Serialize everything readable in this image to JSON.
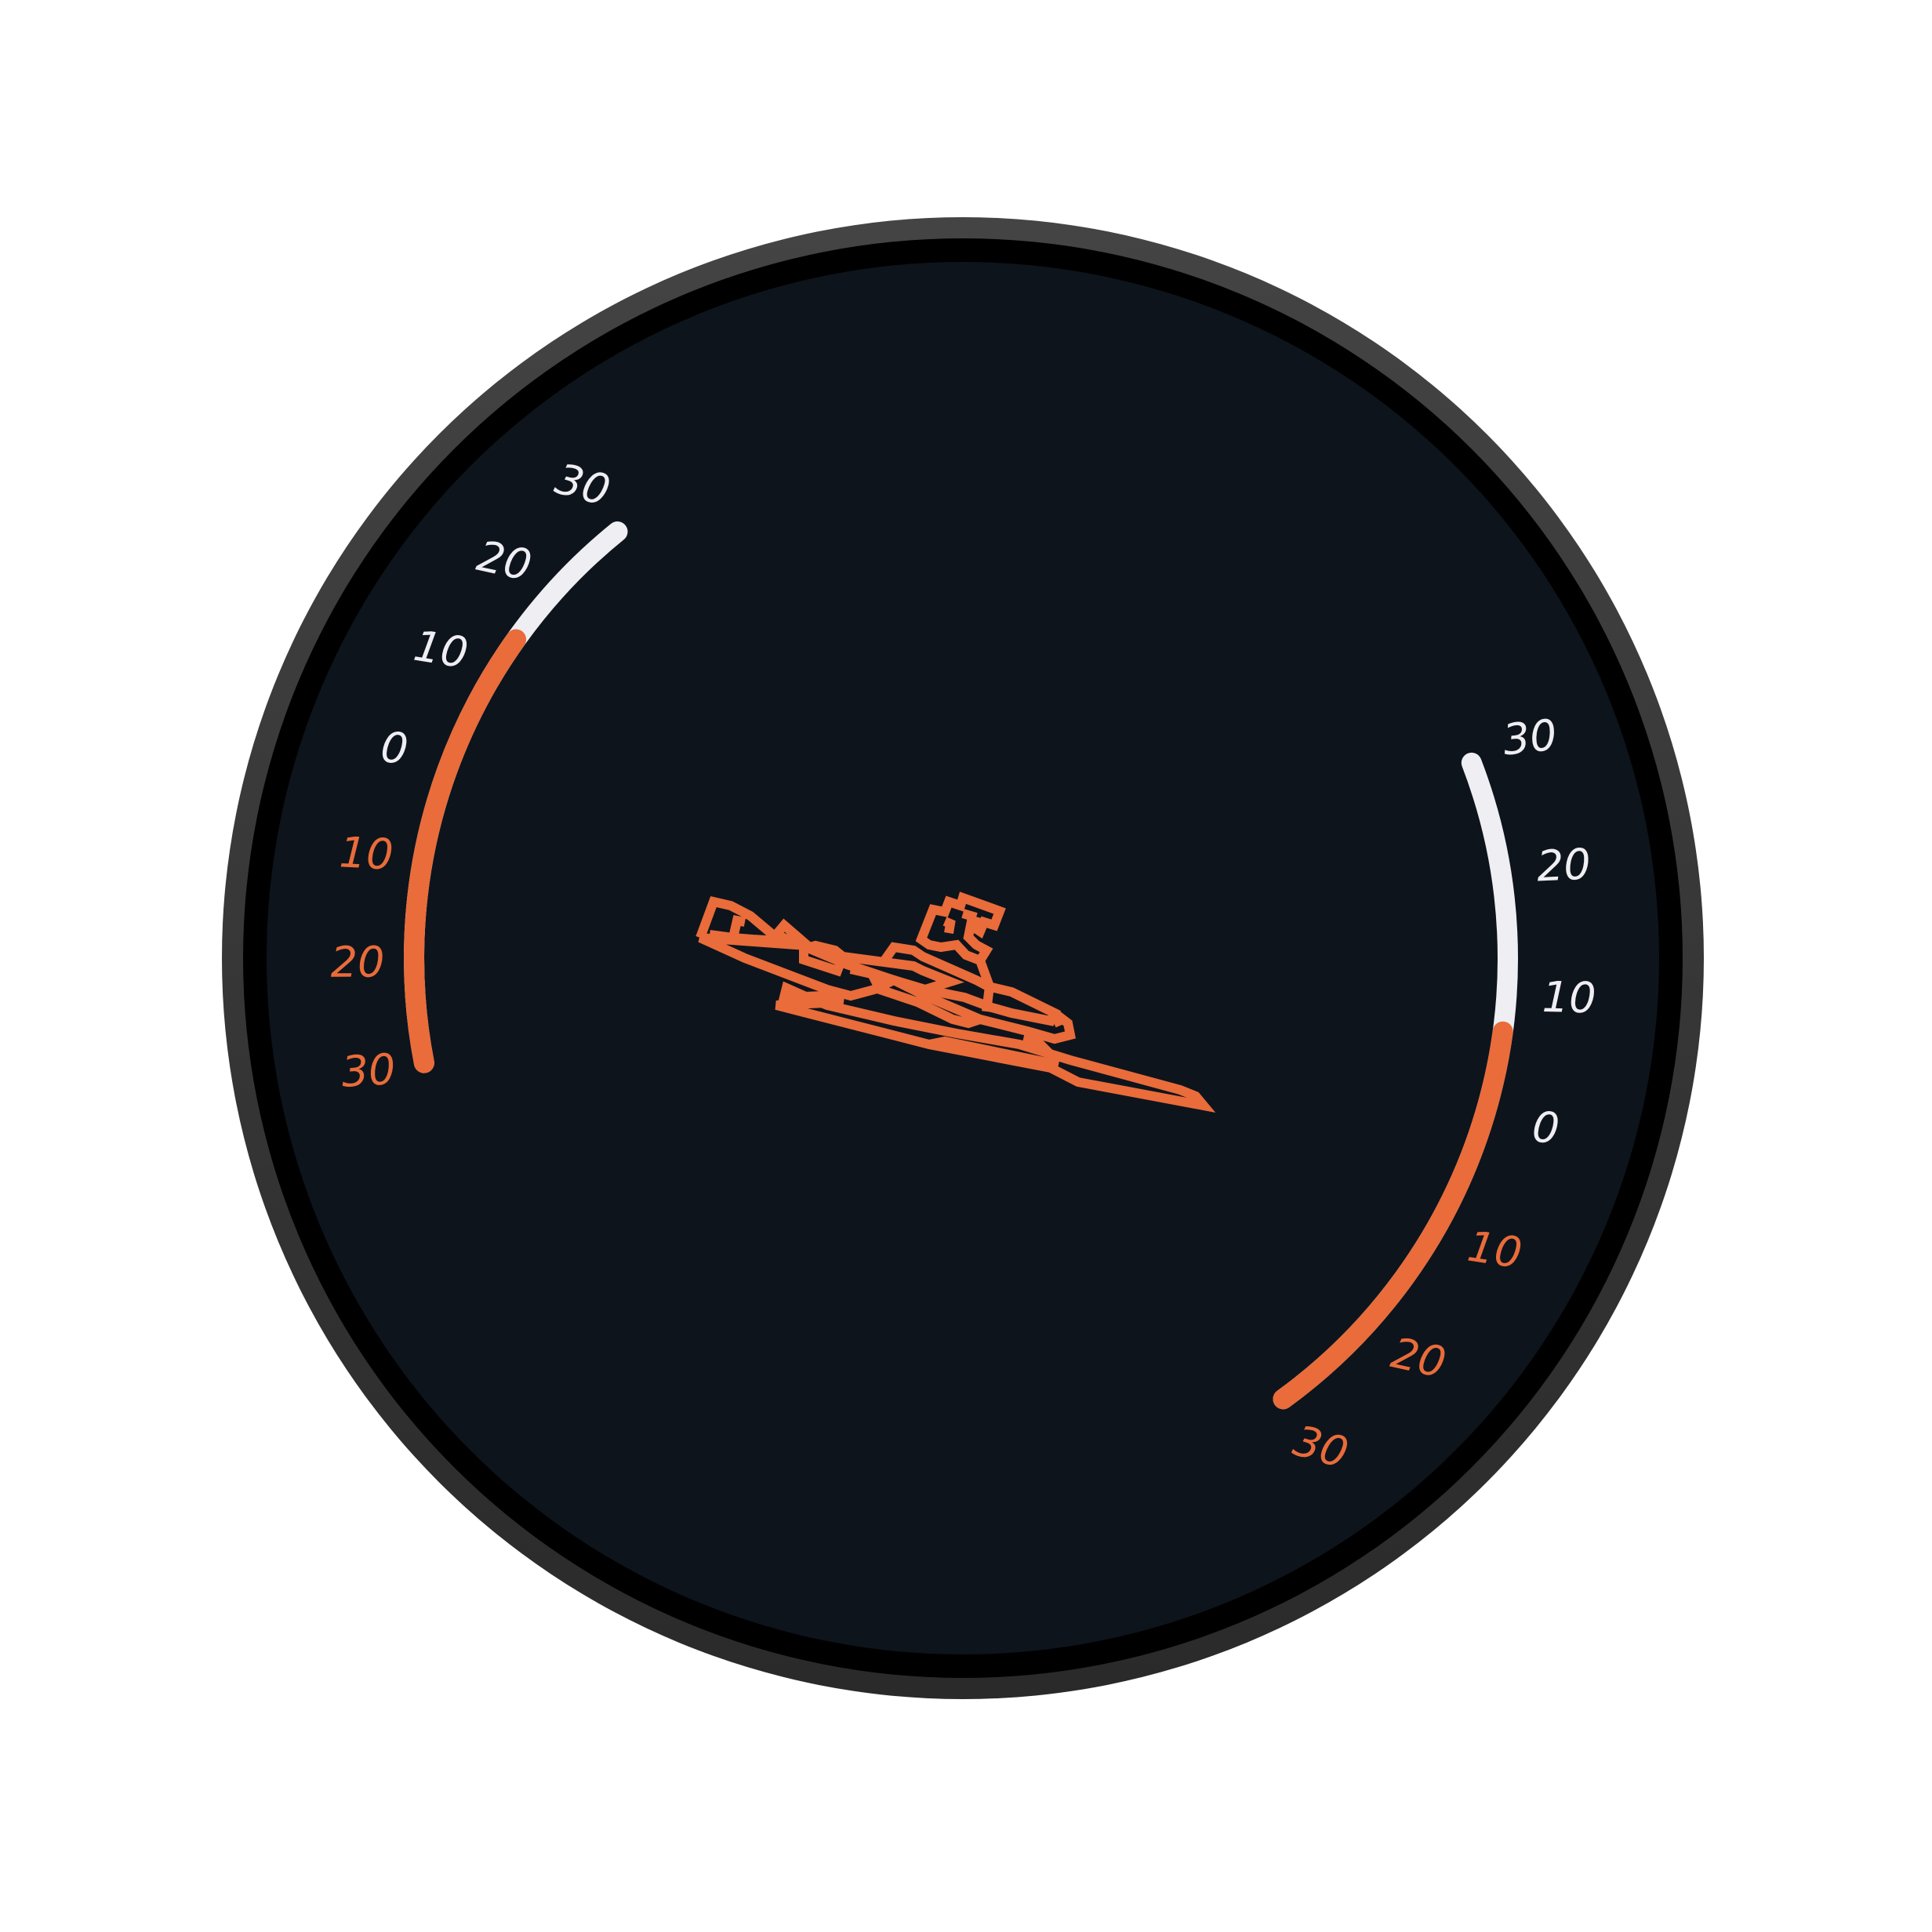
{
  "gauge": {
    "colors": {
      "bezel_outer": "#3d3d3d",
      "bezel_inner": "#000000",
      "face": "#0e141c",
      "accent": "#e96c3a",
      "neutral": "#eeeef3"
    },
    "center_icon": "ship-icon",
    "left_scale": {
      "value": 15,
      "ticks": [
        {
          "label": "30",
          "tone": "positive"
        },
        {
          "label": "20",
          "tone": "positive"
        },
        {
          "label": "10",
          "tone": "positive"
        },
        {
          "label": "0",
          "tone": "positive"
        },
        {
          "label": "10",
          "tone": "negative"
        },
        {
          "label": "20",
          "tone": "negative"
        },
        {
          "label": "30",
          "tone": "negative"
        }
      ]
    },
    "right_scale": {
      "value": 7,
      "ticks": [
        {
          "label": "30",
          "tone": "positive"
        },
        {
          "label": "20",
          "tone": "positive"
        },
        {
          "label": "10",
          "tone": "positive"
        },
        {
          "label": "0",
          "tone": "positive"
        },
        {
          "label": "10",
          "tone": "negative"
        },
        {
          "label": "20",
          "tone": "negative"
        },
        {
          "label": "30",
          "tone": "negative"
        }
      ]
    }
  }
}
